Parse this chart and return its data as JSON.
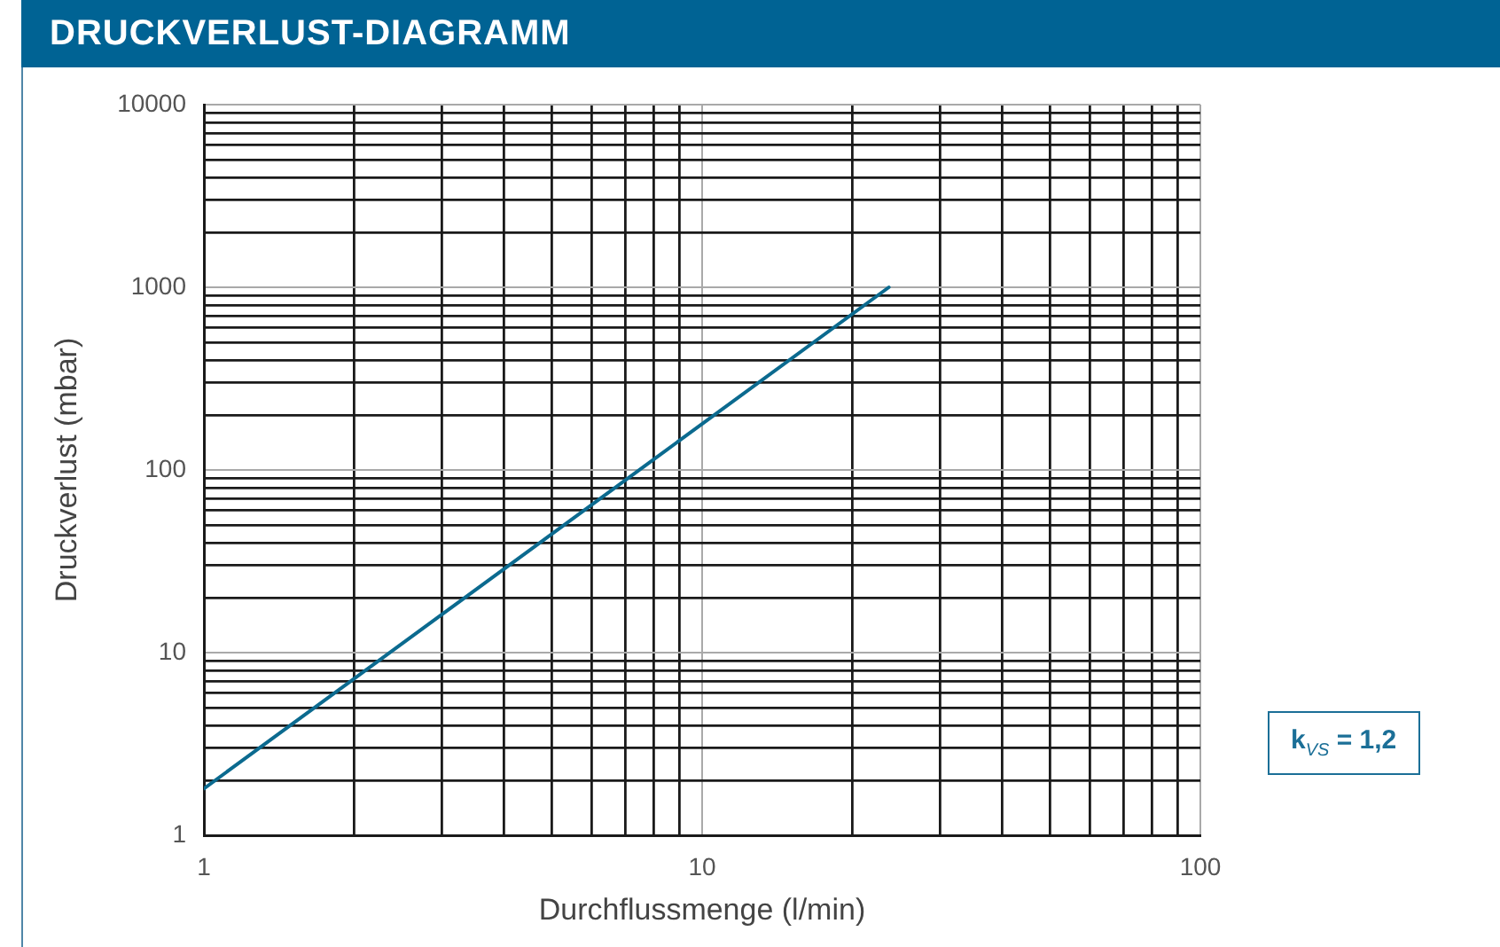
{
  "chart_data": {
    "type": "line",
    "title": "DRUCKVERLUST-DIAGRAMM",
    "xlabel": "Durchflussmenge (l/min)",
    "ylabel": "Druckverlust (mbar)",
    "annotations": [
      "k$_{VS}$ = 1,2"
    ],
    "x": [
      1,
      23.7
    ],
    "series": [
      {
        "color": "#0b6a8f",
        "values": [
          1.8,
          1000
        ]
      }
    ],
    "log": "xy",
    "xlim": [
      1,
      100
    ],
    "ylim": [
      1,
      10000
    ],
    "xticks": [
      1,
      {
        "value": 2,
        "label": null
      },
      {
        "value": 3,
        "label": null
      },
      {
        "value": 4,
        "label": null
      },
      {
        "value": 5,
        "label": null
      },
      {
        "value": 6,
        "label": null
      },
      {
        "value": 7,
        "label": null
      },
      {
        "value": 8,
        "label": null
      },
      {
        "value": 9,
        "label": null
      },
      10,
      {
        "value": 20,
        "label": null
      },
      {
        "value": 30,
        "label": null
      },
      {
        "value": 40,
        "label": null
      },
      {
        "value": 50,
        "label": null
      },
      {
        "value": 60,
        "label": null
      },
      {
        "value": 70,
        "label": null
      },
      {
        "value": 80,
        "label": null
      },
      {
        "value": 90,
        "label": null
      },
      100
    ],
    "yticks": [
      1,
      {
        "value": 2,
        "label": null
      },
      {
        "value": 3,
        "label": null
      },
      {
        "value": 4,
        "label": null
      },
      {
        "value": 5,
        "label": null
      },
      {
        "value": 6,
        "label": null
      },
      {
        "value": 7,
        "label": null
      },
      {
        "value": 8,
        "label": null
      },
      {
        "value": 9,
        "label": null
      },
      10,
      {
        "value": 20,
        "label": null
      },
      {
        "value": 30,
        "label": null
      },
      {
        "value": 40,
        "label": null
      },
      {
        "value": 50,
        "label": null
      },
      {
        "value": 60,
        "label": null
      },
      {
        "value": 70,
        "label": null
      },
      {
        "value": 80,
        "label": null
      },
      {
        "value": 90,
        "label": null
      },
      100,
      {
        "value": 200,
        "label": null
      },
      {
        "value": 300,
        "label": null
      },
      {
        "value": 400,
        "label": null
      },
      {
        "value": 500,
        "label": null
      },
      {
        "value": 600,
        "label": null
      },
      {
        "value": 700,
        "label": null
      },
      {
        "value": 800,
        "label": null
      },
      {
        "value": 900,
        "label": null
      },
      1000,
      {
        "value": 2000,
        "label": null
      },
      {
        "value": 3000,
        "label": null
      },
      {
        "value": 4000,
        "label": null
      },
      {
        "value": 5000,
        "label": null
      },
      {
        "value": 6000,
        "label": null
      },
      {
        "value": 7000,
        "label": null
      },
      {
        "value": 8000,
        "label": null
      },
      {
        "value": 9000,
        "label": null
      },
      10000
    ],
    "grid": true,
    "marker": "none",
    "line_style": "solid"
  }
}
